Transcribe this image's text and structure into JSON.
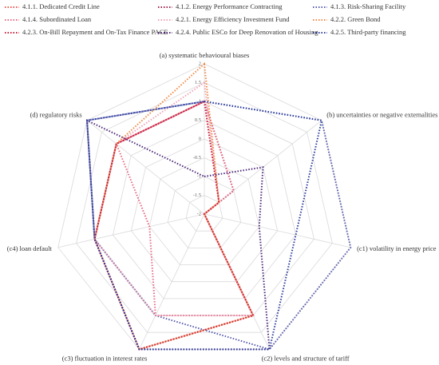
{
  "chart_data": {
    "type": "radar",
    "categories": [
      "(a) systematic behavioural biases",
      "(b) uncertainties or negative externalities",
      "(c1) volatility in energy price",
      "(c2) levels and structure of tariff",
      "(c3) fluctuation in interest rates",
      "(c4) loan default",
      "(d) regulatory risks"
    ],
    "ylim": [
      -2,
      2
    ],
    "yticks": [
      -2,
      -1.5,
      -1,
      -0.5,
      0,
      0.5,
      1,
      1.5,
      2
    ],
    "grid": true,
    "legend": "top",
    "series": [
      {
        "name": "4.1.1. Dedicated Credit Line",
        "color": "#e8554e",
        "values": [
          1,
          -1.5,
          -2,
          1,
          2,
          1,
          1
        ]
      },
      {
        "name": "4.1.2. Energy Performance Contracting",
        "color": "#a0204f",
        "values": [
          1,
          -1,
          -2,
          1,
          1,
          1,
          1
        ]
      },
      {
        "name": "4.1.3. Risk-Sharing Facility",
        "color": "#5a5fb0",
        "values": [
          1,
          2,
          2,
          2,
          1,
          1,
          2
        ]
      },
      {
        "name": "4.1.4. Subordinated Loan",
        "color": "#e66b85",
        "values": [
          1,
          -1,
          -2,
          1,
          1,
          -0.5,
          1
        ]
      },
      {
        "name": "4.2.1. Energy Efficiency Investment Fund",
        "color": "#efa4b6",
        "values": [
          1.5,
          -1.5,
          -2,
          1,
          1,
          1,
          1
        ]
      },
      {
        "name": "4.2.2. Green Bond",
        "color": "#f08a45",
        "values": [
          2,
          -1.5,
          -2,
          1,
          2,
          1,
          1
        ]
      },
      {
        "name": "4.2.3. On-Bill Repayment and On-Tax Finance PACE",
        "color": "#c81e3c",
        "values": [
          1,
          -1.5,
          -2,
          1,
          2,
          1,
          1
        ]
      },
      {
        "name": "4.2.4. Public ESCo for Deep Renovation of Housing",
        "color": "#4e2a7a",
        "values": [
          -1,
          0,
          -0.5,
          2,
          2,
          1,
          2
        ]
      },
      {
        "name": "4.2.5. Third-party financing",
        "color": "#2c3d9b",
        "values": [
          1,
          2,
          0.5,
          2,
          2,
          1,
          2
        ]
      }
    ]
  }
}
